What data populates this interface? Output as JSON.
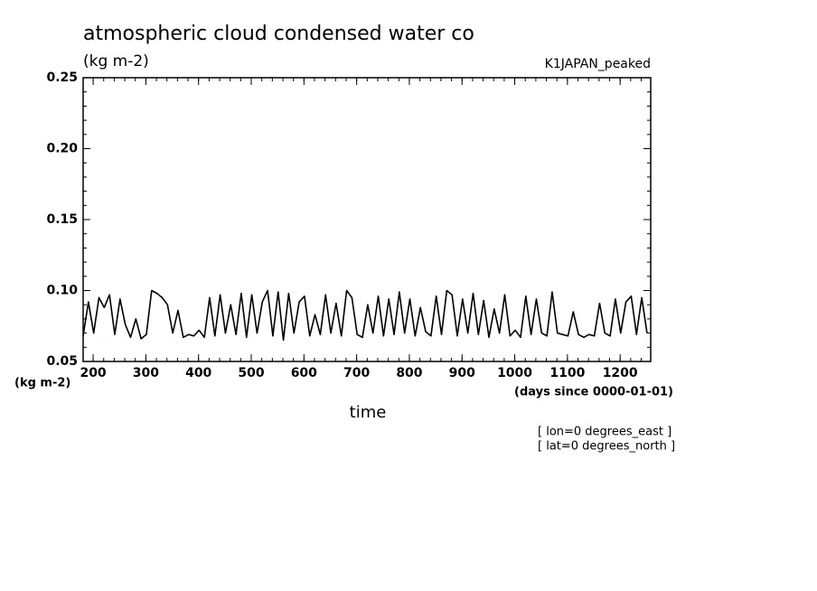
{
  "chart_data": {
    "type": "line",
    "title": "atmospheric cloud condensed water co",
    "subtitle": "(kg m-2)",
    "run_label": "K1JAPAN_peaked",
    "y_label": "(kg m-2)",
    "x_units": "(days since 0000-01-01)",
    "x_label": "time",
    "notes": [
      "[ lon=0 degrees_east ]",
      "[ lat=0 degrees_north ]"
    ],
    "x": [
      181,
      191,
      201,
      211,
      221,
      231,
      241,
      251,
      261,
      271,
      281,
      291,
      301,
      311,
      321,
      331,
      341,
      351,
      361,
      371,
      381,
      391,
      401,
      411,
      421,
      431,
      441,
      451,
      461,
      471,
      481,
      491,
      501,
      511,
      521,
      531,
      541,
      551,
      561,
      571,
      581,
      591,
      601,
      611,
      621,
      631,
      641,
      651,
      661,
      671,
      681,
      691,
      701,
      711,
      721,
      731,
      741,
      751,
      761,
      771,
      781,
      791,
      801,
      811,
      821,
      831,
      841,
      851,
      861,
      871,
      881,
      891,
      901,
      911,
      921,
      931,
      941,
      951,
      961,
      971,
      981,
      991,
      1001,
      1011,
      1021,
      1031,
      1041,
      1051,
      1061,
      1071,
      1081,
      1091,
      1101,
      1111,
      1121,
      1131,
      1141,
      1151,
      1161,
      1171,
      1181,
      1191,
      1201,
      1211,
      1221,
      1231,
      1241,
      1251
    ],
    "series": [
      {
        "color": "#000000",
        "values": [
          0.068,
          0.092,
          0.07,
          0.095,
          0.088,
          0.097,
          0.069,
          0.094,
          0.076,
          0.067,
          0.08,
          0.066,
          0.069,
          0.1,
          0.098,
          0.095,
          0.09,
          0.07,
          0.086,
          0.067,
          0.069,
          0.068,
          0.072,
          0.067,
          0.095,
          0.068,
          0.097,
          0.07,
          0.09,
          0.069,
          0.098,
          0.067,
          0.097,
          0.07,
          0.092,
          0.1,
          0.068,
          0.099,
          0.065,
          0.098,
          0.07,
          0.092,
          0.096,
          0.068,
          0.083,
          0.069,
          0.097,
          0.07,
          0.091,
          0.068,
          0.1,
          0.095,
          0.069,
          0.067,
          0.09,
          0.07,
          0.096,
          0.068,
          0.094,
          0.069,
          0.099,
          0.07,
          0.094,
          0.068,
          0.088,
          0.071,
          0.068,
          0.096,
          0.069,
          0.1,
          0.097,
          0.068,
          0.094,
          0.07,
          0.098,
          0.069,
          0.093,
          0.067,
          0.087,
          0.07,
          0.097,
          0.068,
          0.072,
          0.067,
          0.096,
          0.069,
          0.094,
          0.07,
          0.068,
          0.099,
          0.07,
          0.069,
          0.068,
          0.085,
          0.069,
          0.067,
          0.069,
          0.068,
          0.091,
          0.07,
          0.068,
          0.094,
          0.07,
          0.092,
          0.096,
          0.069,
          0.095,
          0.07
        ]
      }
    ],
    "xlim": [
      181,
      1258
    ],
    "xticks": [
      200,
      300,
      400,
      500,
      600,
      700,
      800,
      900,
      1000,
      1100,
      1200
    ],
    "ylim": [
      0.05,
      0.25
    ],
    "yticks": [
      {
        "value": 0.05,
        "label": "0.05"
      },
      {
        "value": 0.1,
        "label": "0.10"
      },
      {
        "value": 0.15,
        "label": "0.15"
      },
      {
        "value": 0.2,
        "label": "0.20"
      },
      {
        "value": 0.25,
        "label": "0.25"
      }
    ]
  }
}
